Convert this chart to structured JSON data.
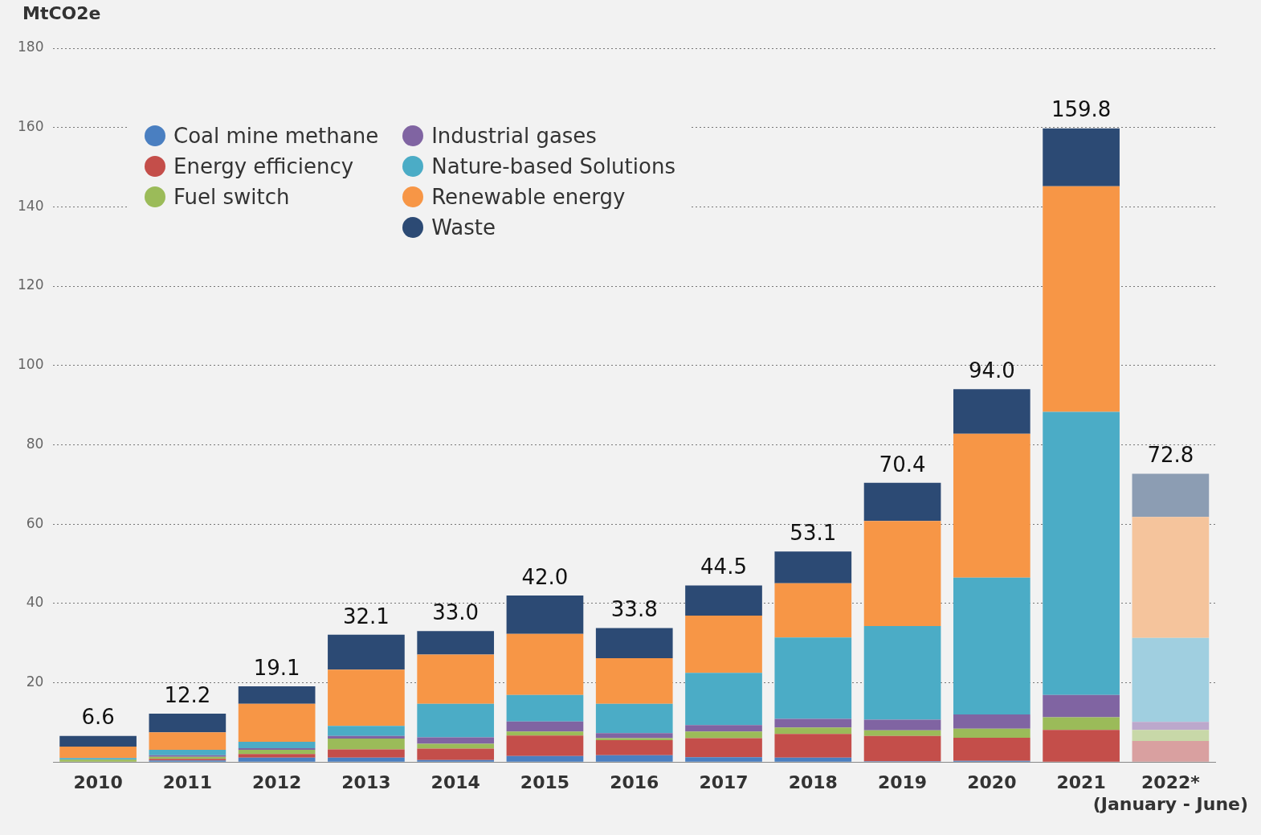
{
  "chart_data": {
    "type": "bar",
    "stacked": true,
    "ylabel": "MtCO2e",
    "categories": [
      "2010",
      "2011",
      "2012",
      "2013",
      "2014",
      "2015",
      "2016",
      "2017",
      "2018",
      "2019",
      "2020",
      "2021",
      "2022*\n(January - June)"
    ],
    "series": [
      {
        "name": "Coal mine methane",
        "color": "#4a7fc1",
        "colors": [
          "#4a7fc1",
          "#4a7fc1",
          "#4a7fc1",
          "#4a7fc1",
          "#4a7fc1",
          "#4a7fc1",
          "#4a7fc1",
          "#4a7fc1",
          "#4a7fc1",
          "#4a7fc1",
          "#4a7fc1",
          "#4a7fc1",
          "#a8c0e0"
        ],
        "values": [
          0,
          0.4,
          1.1,
          1.1,
          0.5,
          1.5,
          1.7,
          1.2,
          1.1,
          0.2,
          0.3,
          0,
          0
        ]
      },
      {
        "name": "Energy efficiency",
        "color": "#c44e4a",
        "colors": [
          "#c44e4a",
          "#c44e4a",
          "#c44e4a",
          "#c44e4a",
          "#c44e4a",
          "#c44e4a",
          "#c44e4a",
          "#c44e4a",
          "#c44e4a",
          "#c44e4a",
          "#c44e4a",
          "#c44e4a",
          "#d9a0a0"
        ],
        "values": [
          0,
          0.4,
          0.9,
          2.1,
          2.9,
          5.2,
          3.8,
          4.8,
          6.0,
          6.4,
          5.8,
          8.1,
          5.3
        ]
      },
      {
        "name": "Fuel switch",
        "color": "#9bbb59",
        "colors": [
          "#9bbb59",
          "#9bbb59",
          "#9bbb59",
          "#9bbb59",
          "#9bbb59",
          "#9bbb59",
          "#9bbb59",
          "#9bbb59",
          "#9bbb59",
          "#9bbb59",
          "#9bbb59",
          "#9bbb59",
          "#c8d8a8"
        ],
        "values": [
          0.6,
          0.5,
          1.1,
          2.7,
          1.2,
          1.0,
          0.5,
          1.7,
          1.6,
          1.4,
          2.3,
          3.2,
          2.8
        ]
      },
      {
        "name": "Industrial gases",
        "color": "#8064a2",
        "colors": [
          "#8064a2",
          "#8064a2",
          "#8064a2",
          "#8064a2",
          "#8064a2",
          "#8064a2",
          "#8064a2",
          "#8064a2",
          "#8064a2",
          "#8064a2",
          "#8064a2",
          "#8064a2",
          "#bca8cc"
        ],
        "values": [
          0,
          0.4,
          0.4,
          0.7,
          1.6,
          2.5,
          1.3,
          1.6,
          2.2,
          2.7,
          3.6,
          5.6,
          2.0
        ]
      },
      {
        "name": "Nature-based Solutions",
        "color": "#4bacc6",
        "colors": [
          "#4bacc6",
          "#4bacc6",
          "#4bacc6",
          "#4bacc6",
          "#4bacc6",
          "#4bacc6",
          "#4bacc6",
          "#4bacc6",
          "#4bacc6",
          "#4bacc6",
          "#4bacc6",
          "#4bacc6",
          "#a0cfe0"
        ],
        "values": [
          0.4,
          1.4,
          1.6,
          2.5,
          8.5,
          6.7,
          7.4,
          13.2,
          20.5,
          23.6,
          34.5,
          71.4,
          21.2
        ]
      },
      {
        "name": "Renewable energy",
        "color": "#f79646",
        "colors": [
          "#f79646",
          "#f79646",
          "#f79646",
          "#f79646",
          "#f79646",
          "#f79646",
          "#f79646",
          "#f79646",
          "#f79646",
          "#f79646",
          "#f79646",
          "#f79646",
          "#f5c49c"
        ],
        "values": [
          2.9,
          4.4,
          9.6,
          14.2,
          12.4,
          15.4,
          11.5,
          14.4,
          13.7,
          26.5,
          36.3,
          56.9,
          30.5
        ]
      },
      {
        "name": "Waste",
        "color": "#2c4a74",
        "colors": [
          "#2c4a74",
          "#2c4a74",
          "#2c4a74",
          "#2c4a74",
          "#2c4a74",
          "#2c4a74",
          "#2c4a74",
          "#2c4a74",
          "#2c4a74",
          "#2c4a74",
          "#2c4a74",
          "#2c4a74",
          "#8c9db3"
        ],
        "values": [
          2.7,
          4.7,
          4.4,
          8.8,
          5.9,
          9.7,
          7.6,
          7.6,
          8.0,
          9.6,
          11.2,
          14.6,
          10.9
        ]
      }
    ],
    "totals": [
      "6.6",
      "12.2",
      "19.1",
      "32.1",
      "33.0",
      "42.0",
      "33.8",
      "44.5",
      "53.1",
      "70.4",
      "94.0",
      "159.8",
      "72.8"
    ],
    "ylim": [
      0,
      180
    ],
    "yticks": [
      {
        "value": 0,
        "label": null
      },
      20,
      40,
      60,
      80,
      100,
      120,
      140,
      160,
      180
    ],
    "grid": "y",
    "legend": "top left"
  }
}
